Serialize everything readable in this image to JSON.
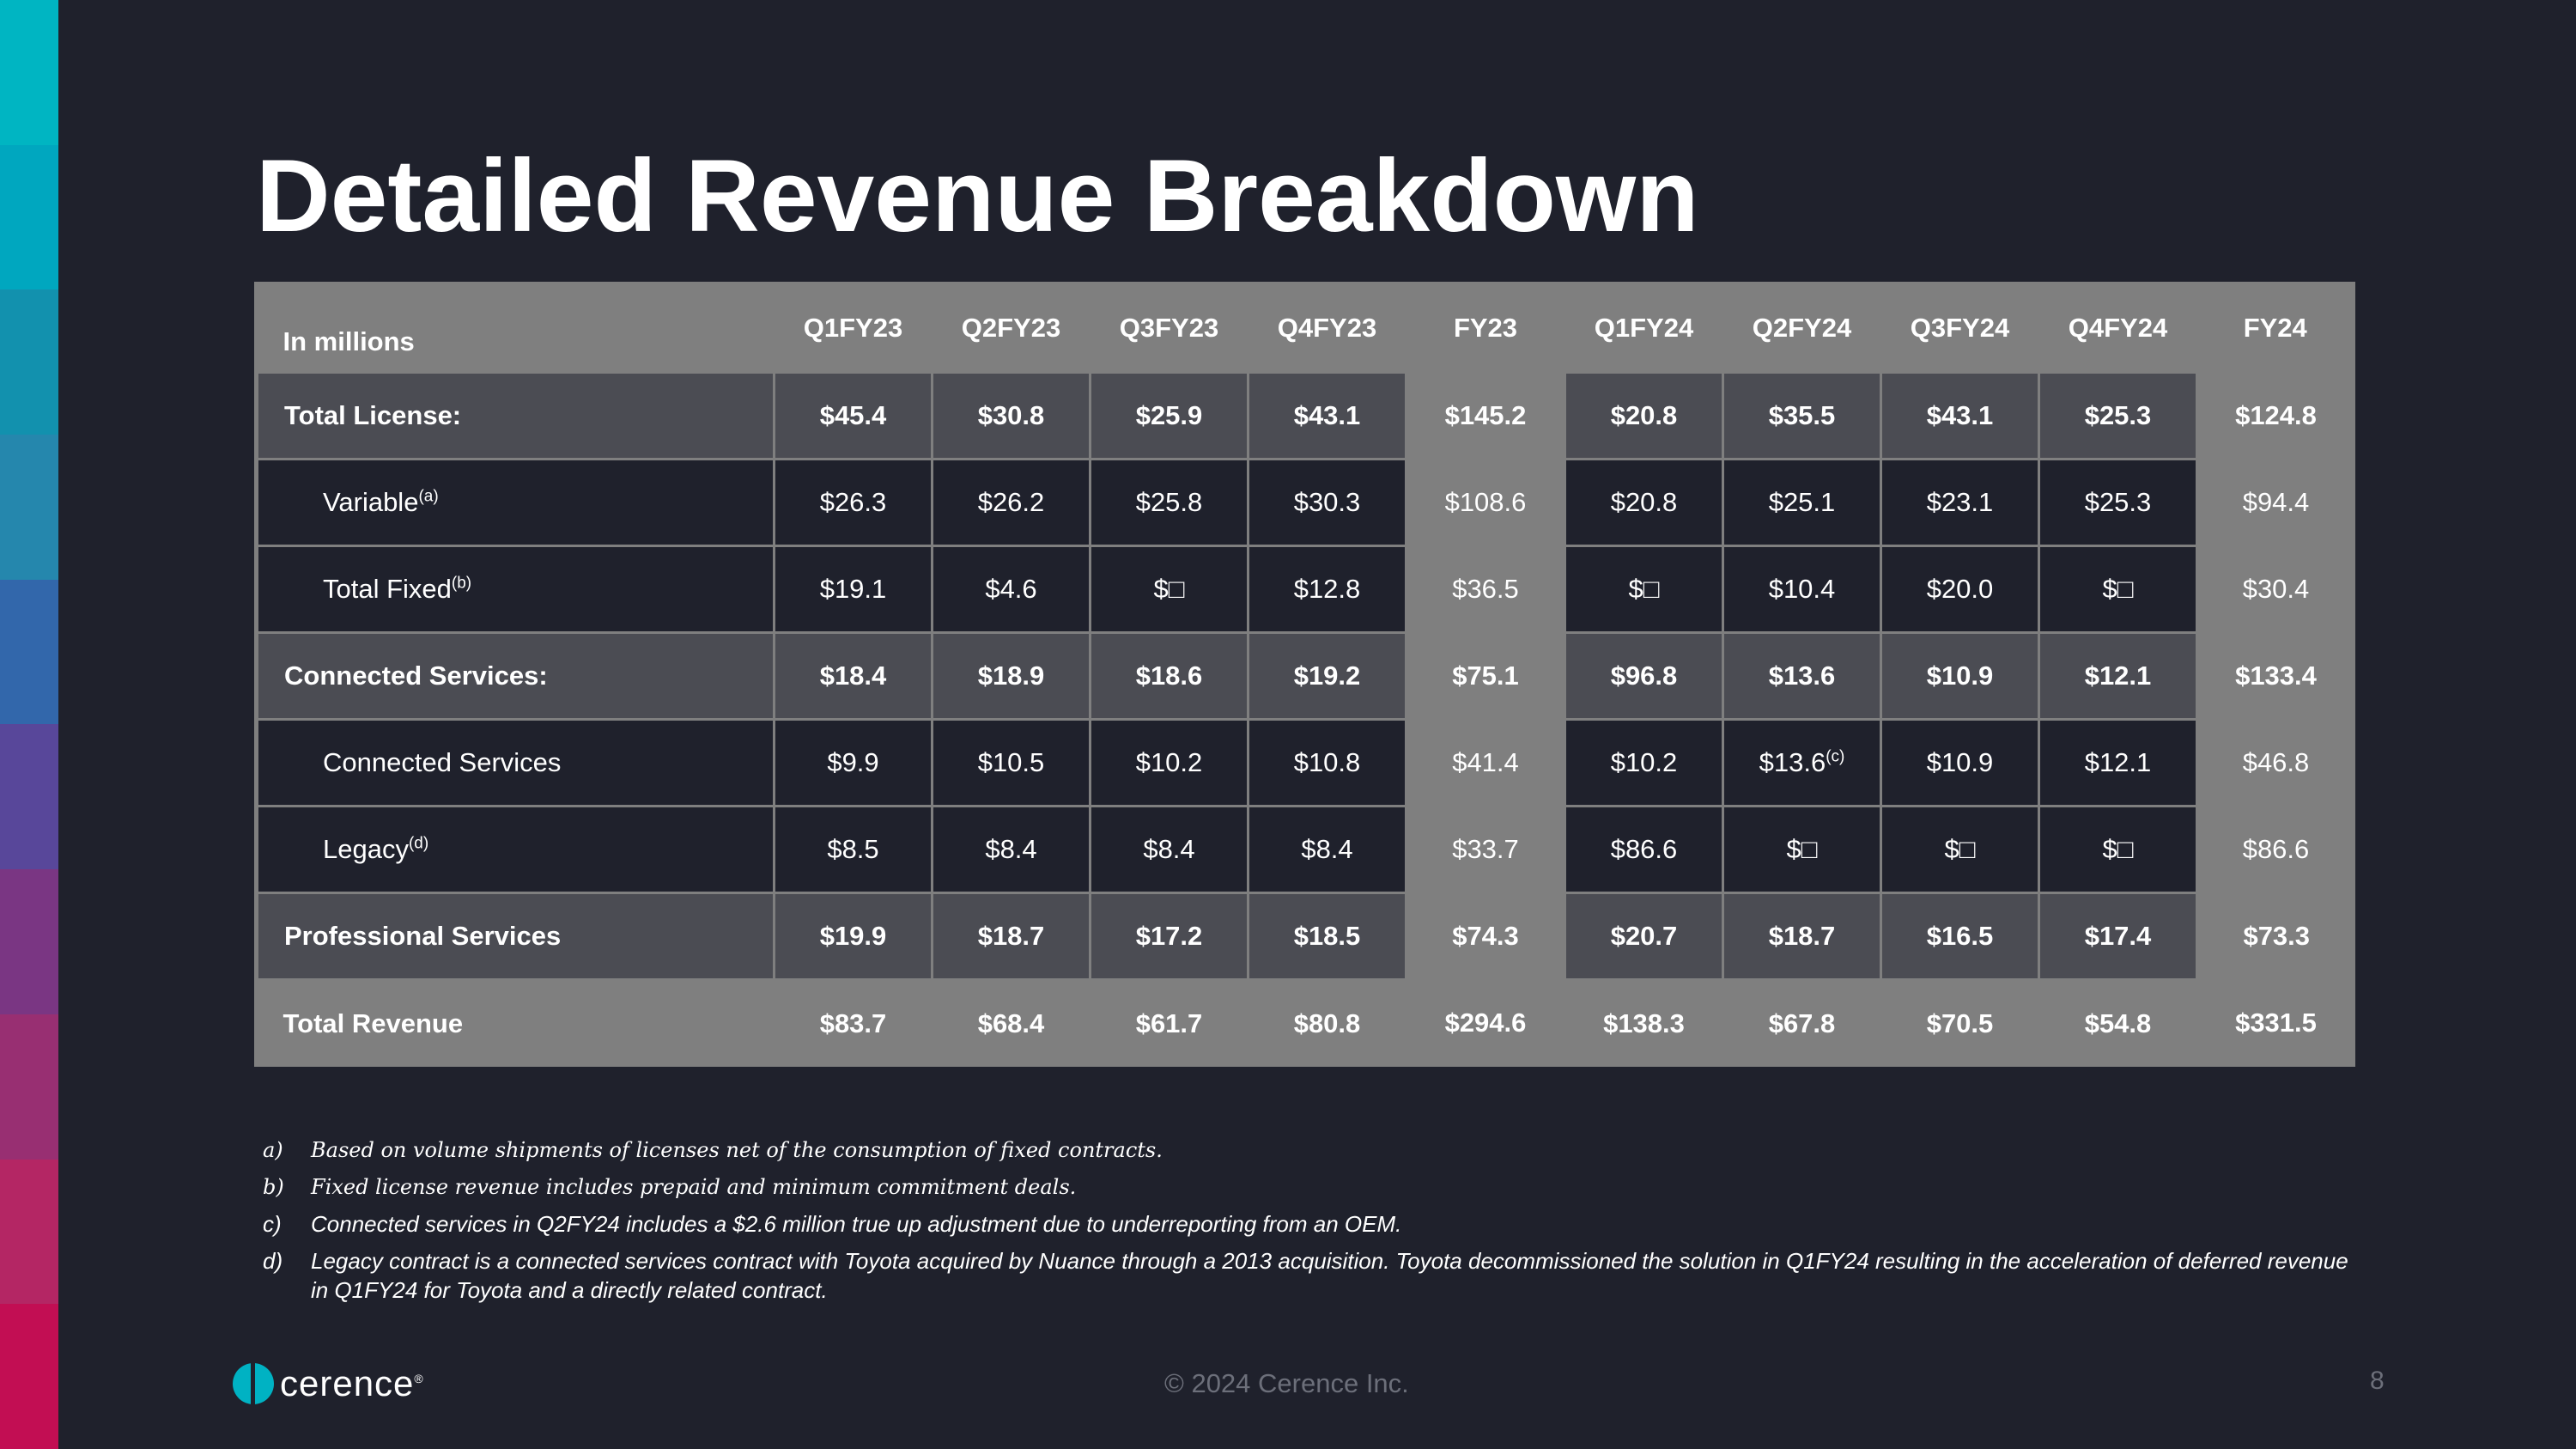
{
  "title": "Detailed Revenue Breakdown",
  "colors": {
    "background": "#1f212c",
    "table_frame": "#7f7f7f",
    "bold_row_cell": "#4b4c53",
    "normal_row_cell": "#1f212c",
    "logo": "#00b2c3",
    "stripe": [
      "#00b5c2",
      "#00a7bf",
      "#1291ae",
      "#2587ad",
      "#3267ab",
      "#58479a",
      "#7a3683",
      "#982f72",
      "#b42664",
      "#c20e53"
    ]
  },
  "table": {
    "header_label": "In millions",
    "columns": [
      "Q1FY23",
      "Q2FY23",
      "Q3FY23",
      "Q4FY23",
      "FY23",
      "Q1FY24",
      "Q2FY24",
      "Q3FY24",
      "Q4FY24",
      "FY24"
    ],
    "rows": [
      {
        "label": "Total License:",
        "sup": "",
        "values": [
          "$45.4",
          "$30.8",
          "$25.9",
          "$43.1",
          "$145.2",
          "$20.8",
          "$35.5",
          "$43.1",
          "$25.3",
          "$124.8"
        ]
      },
      {
        "label": "Variable",
        "sup": "(a)",
        "values": [
          "$26.3",
          "$26.2",
          "$25.8",
          "$30.3",
          "$108.6",
          "$20.8",
          "$25.1",
          "$23.1",
          "$25.3",
          "$94.4"
        ]
      },
      {
        "label": "Total Fixed",
        "sup": "(b)",
        "values": [
          "$19.1",
          "$4.6",
          "$□",
          "$12.8",
          "$36.5",
          "$□",
          "$10.4",
          "$20.0",
          "$□",
          "$30.4"
        ]
      },
      {
        "label": "Connected Services:",
        "sup": "",
        "values": [
          "$18.4",
          "$18.9",
          "$18.6",
          "$19.2",
          "$75.1",
          "$96.8",
          "$13.6",
          "$10.9",
          "$12.1",
          "$133.4"
        ]
      },
      {
        "label": "Connected Services",
        "sup": "",
        "values": [
          "$9.9",
          "$10.5",
          "$10.2",
          "$10.8",
          "$41.4",
          "$10.2",
          "$13.6",
          "$10.9",
          "$12.1",
          "$46.8"
        ],
        "q2fy24_sup": "(c)"
      },
      {
        "label": "Legacy",
        "sup": "(d)",
        "values": [
          "$8.5",
          "$8.4",
          "$8.4",
          "$8.4",
          "$33.7",
          "$86.6",
          "$□",
          "$□",
          "$□",
          "$86.6"
        ]
      },
      {
        "label": "Professional Services",
        "sup": "",
        "values": [
          "$19.9",
          "$18.7",
          "$17.2",
          "$18.5",
          "$74.3",
          "$20.7",
          "$18.7",
          "$16.5",
          "$17.4",
          "$73.3"
        ]
      },
      {
        "label": "Total Revenue",
        "sup": "",
        "values": [
          "$83.7",
          "$68.4",
          "$61.7",
          "$80.8",
          "$294.6",
          "$138.3",
          "$67.8",
          "$70.5",
          "$54.8",
          "$331.5"
        ]
      }
    ]
  },
  "footnotes": [
    {
      "marker": "a)",
      "text": "Based on volume shipments of licenses net of the consumption of fixed contracts."
    },
    {
      "marker": "b)",
      "text": "Fixed license revenue includes prepaid and minimum commitment deals."
    },
    {
      "marker": "c)",
      "text": "Connected services in Q2FY24 includes a $2.6 million true up adjustment due to underreporting from an OEM."
    },
    {
      "marker": "d)",
      "text": "Legacy contract is a connected services contract with Toyota acquired by Nuance through a 2013 acquisition. Toyota decommissioned the solution in Q1FY24 resulting in the acceleration of deferred revenue in Q1FY24 for Toyota and a directly related contract."
    }
  ],
  "footer": {
    "logo_text": "cerence",
    "logo_reg": "®",
    "copyright": "© 2024 Cerence Inc.",
    "page_number": "8"
  }
}
